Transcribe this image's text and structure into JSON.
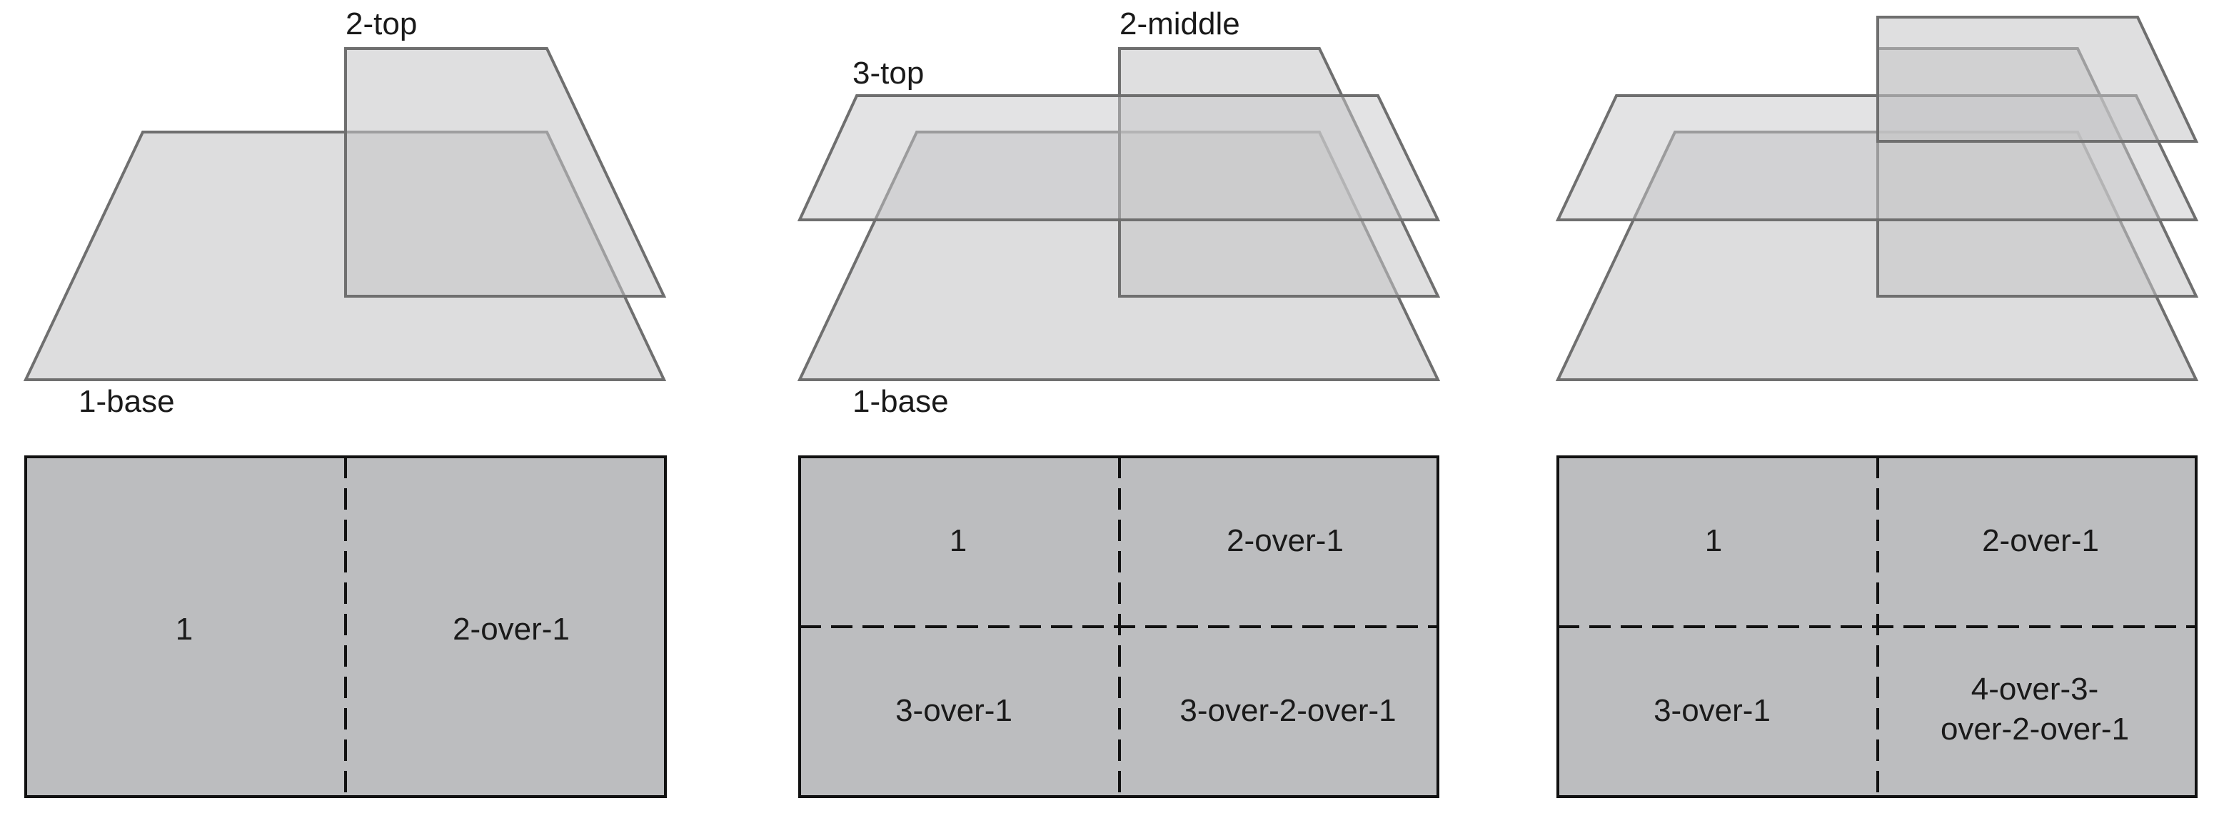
{
  "colors": {
    "plane_fill": "#d9d9da",
    "plane_stroke": "#6f6f6f",
    "grid_fill": "#bcbdbf",
    "grid_stroke": "#111111",
    "text": "#1a1a1a"
  },
  "panels": [
    {
      "layer_labels": {
        "top": "2-top",
        "base": "1-base"
      },
      "cells": [
        "1",
        "2-over-1"
      ]
    },
    {
      "layer_labels": {
        "middle": "2-middle",
        "top": "3-top",
        "base": "1-base"
      },
      "cells": [
        "1",
        "2-over-1",
        "3-over-1",
        "3-over-2-over-1"
      ]
    },
    {
      "layer_labels": {},
      "cells": [
        "1",
        "2-over-1",
        "3-over-1",
        "4-over-3-",
        "over-2-over-1"
      ]
    }
  ]
}
